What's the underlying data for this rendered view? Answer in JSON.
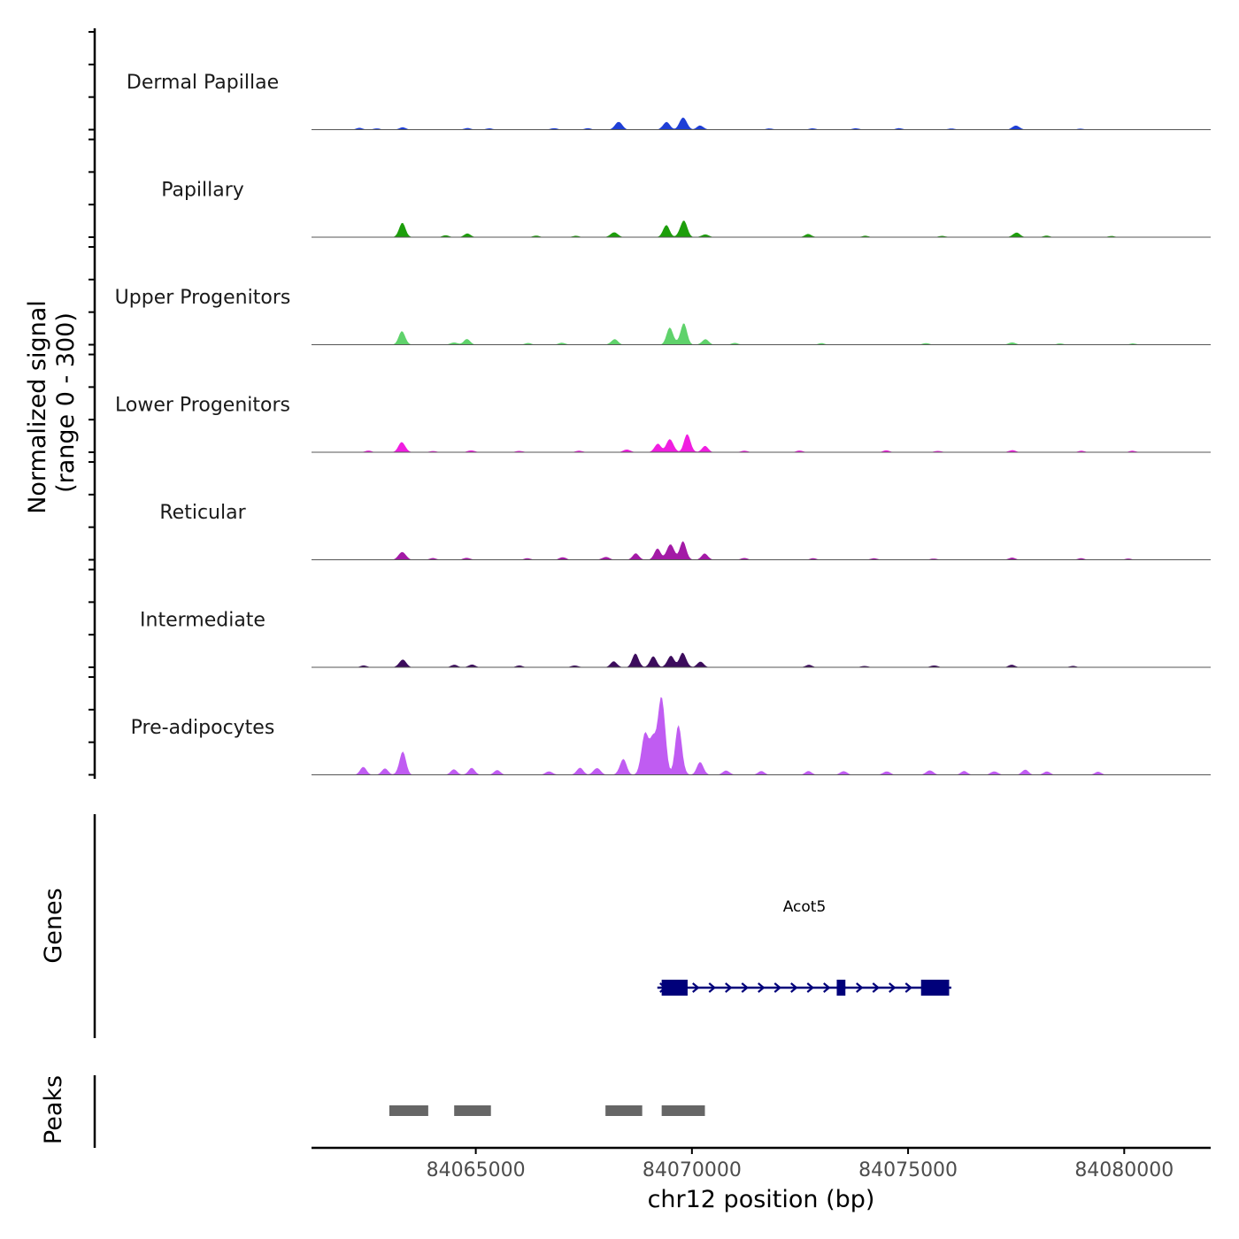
{
  "chart_data": {
    "type": "area",
    "title": "",
    "xlabel": "chr12 position (bp)",
    "ylabel_line1": "Normalized signal",
    "ylabel_line2": "(range 0 - 300)",
    "yrange": [
      0,
      300
    ],
    "xlim": [
      84061200,
      84082000
    ],
    "x_ticks": [
      84065000,
      84070000,
      84075000,
      84080000
    ],
    "x_tick_labels": [
      "84065000",
      "84070000",
      "84075000",
      "84080000"
    ],
    "tracks": [
      {
        "name": "Dermal Papillae",
        "color": "#1f3fd6",
        "peaks": [
          [
            84062300,
            6
          ],
          [
            84062700,
            5
          ],
          [
            84063300,
            8
          ],
          [
            84064800,
            6
          ],
          [
            84065300,
            5
          ],
          [
            84066800,
            6
          ],
          [
            84067600,
            5
          ],
          [
            84068300,
            35
          ],
          [
            84069400,
            30
          ],
          [
            84069800,
            55
          ],
          [
            84070200,
            15
          ],
          [
            84071800,
            5
          ],
          [
            84072800,
            5
          ],
          [
            84073800,
            5
          ],
          [
            84074800,
            5
          ],
          [
            84076000,
            5
          ],
          [
            84077500,
            18
          ],
          [
            84079000,
            4
          ]
        ]
      },
      {
        "name": "Papillary",
        "color": "#1d9e0b",
        "peaks": [
          [
            84063300,
            45
          ],
          [
            84064300,
            6
          ],
          [
            84064800,
            12
          ],
          [
            84066400,
            5
          ],
          [
            84067300,
            5
          ],
          [
            84068200,
            22
          ],
          [
            84069400,
            40
          ],
          [
            84069800,
            70
          ],
          [
            84070300,
            12
          ],
          [
            84072700,
            12
          ],
          [
            84074000,
            5
          ],
          [
            84075800,
            5
          ],
          [
            84077500,
            20
          ],
          [
            84078200,
            5
          ],
          [
            84079700,
            4
          ]
        ]
      },
      {
        "name": "Upper Progenitors",
        "color": "#5fd26b",
        "peaks": [
          [
            84063300,
            45
          ],
          [
            84064500,
            10
          ],
          [
            84064800,
            18
          ],
          [
            84066200,
            6
          ],
          [
            84067000,
            8
          ],
          [
            84068200,
            22
          ],
          [
            84069500,
            60
          ],
          [
            84069800,
            75
          ],
          [
            84070300,
            20
          ],
          [
            84071000,
            6
          ],
          [
            84073000,
            5
          ],
          [
            84075400,
            6
          ],
          [
            84077400,
            10
          ],
          [
            84078500,
            5
          ],
          [
            84080200,
            4
          ]
        ]
      },
      {
        "name": "Lower Progenitors",
        "color": "#f01ee0",
        "peaks": [
          [
            84062500,
            6
          ],
          [
            84063300,
            40
          ],
          [
            84064000,
            5
          ],
          [
            84064900,
            8
          ],
          [
            84066000,
            6
          ],
          [
            84067400,
            6
          ],
          [
            84068500,
            12
          ],
          [
            84069200,
            30
          ],
          [
            84069500,
            55
          ],
          [
            84069900,
            60
          ],
          [
            84070300,
            20
          ],
          [
            84071200,
            6
          ],
          [
            84072500,
            6
          ],
          [
            84074500,
            6
          ],
          [
            84075700,
            6
          ],
          [
            84077400,
            8
          ],
          [
            84079000,
            5
          ],
          [
            84080200,
            5
          ]
        ]
      },
      {
        "name": "Reticular",
        "color": "#a31aa6",
        "peaks": [
          [
            84063300,
            35
          ],
          [
            84064000,
            6
          ],
          [
            84064800,
            8
          ],
          [
            84066200,
            5
          ],
          [
            84067000,
            10
          ],
          [
            84068000,
            12
          ],
          [
            84068700,
            20
          ],
          [
            84069200,
            35
          ],
          [
            84069500,
            70
          ],
          [
            84069800,
            60
          ],
          [
            84070300,
            20
          ],
          [
            84071200,
            6
          ],
          [
            84072800,
            5
          ],
          [
            84074200,
            6
          ],
          [
            84075600,
            5
          ],
          [
            84077400,
            7
          ],
          [
            84079000,
            5
          ],
          [
            84080100,
            4
          ]
        ]
      },
      {
        "name": "Intermediate",
        "color": "#3c0c5c",
        "peaks": [
          [
            84062400,
            6
          ],
          [
            84063300,
            32
          ],
          [
            84064500,
            8
          ],
          [
            84064900,
            10
          ],
          [
            84066000,
            6
          ],
          [
            84067300,
            8
          ],
          [
            84068200,
            20
          ],
          [
            84068700,
            45
          ],
          [
            84069100,
            35
          ],
          [
            84069500,
            45
          ],
          [
            84069800,
            55
          ],
          [
            84070200,
            18
          ],
          [
            84072700,
            8
          ],
          [
            84074000,
            6
          ],
          [
            84075600,
            8
          ],
          [
            84077400,
            8
          ],
          [
            84078800,
            5
          ]
        ]
      },
      {
        "name": "Pre-adipocytes",
        "color": "#c05cf2",
        "peaks": [
          [
            84062400,
            25
          ],
          [
            84062900,
            20
          ],
          [
            84063300,
            80
          ],
          [
            84064500,
            18
          ],
          [
            84064900,
            22
          ],
          [
            84065500,
            15
          ],
          [
            84066700,
            15
          ],
          [
            84067400,
            25
          ],
          [
            84067800,
            30
          ],
          [
            84068400,
            60
          ],
          [
            84068900,
            160
          ],
          [
            84069100,
            110
          ],
          [
            84069300,
            350
          ],
          [
            84069700,
            180
          ],
          [
            84070200,
            45
          ],
          [
            84070800,
            18
          ],
          [
            84071600,
            12
          ],
          [
            84072700,
            12
          ],
          [
            84073500,
            15
          ],
          [
            84074500,
            15
          ],
          [
            84075500,
            20
          ],
          [
            84076300,
            12
          ],
          [
            84077000,
            15
          ],
          [
            84077700,
            18
          ],
          [
            84078200,
            12
          ],
          [
            84079400,
            10
          ]
        ]
      }
    ],
    "genes": [
      {
        "name": "Acot5",
        "start": 84069200,
        "end": 84076000,
        "strand": "+",
        "exons": [
          [
            84069300,
            84069900
          ],
          [
            84073350,
            84073550
          ],
          [
            84075300,
            84075950
          ]
        ]
      }
    ],
    "peak_regions": [
      [
        84063000,
        84063900
      ],
      [
        84064500,
        84065350
      ],
      [
        84068000,
        84068850
      ],
      [
        84069300,
        84070300
      ]
    ],
    "panel_labels": {
      "genes": "Genes",
      "peaks": "Peaks"
    }
  }
}
